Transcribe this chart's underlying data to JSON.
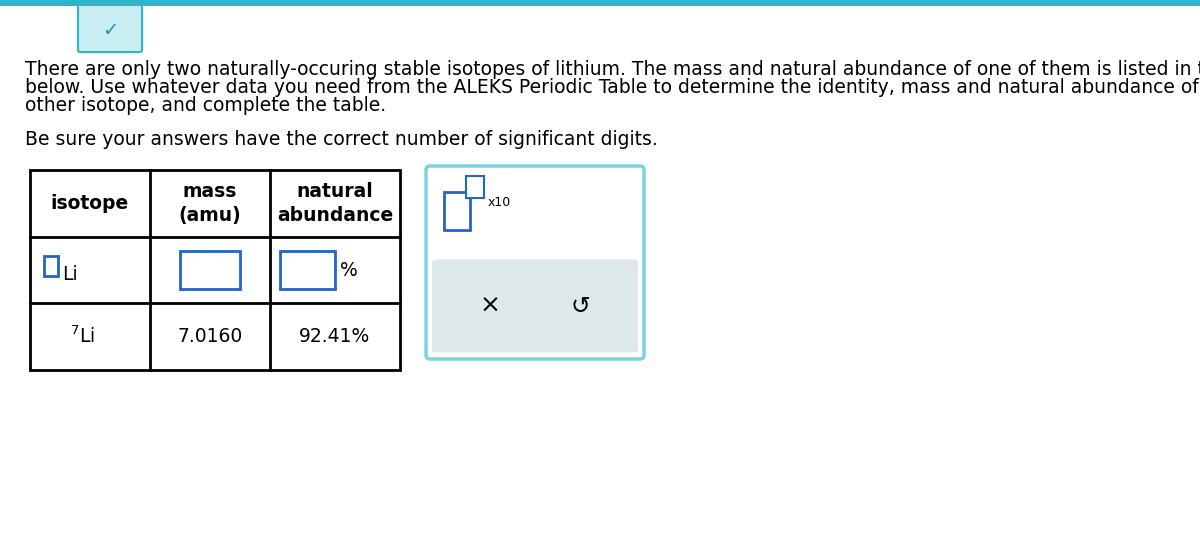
{
  "bg_color": "#ffffff",
  "top_bar_color": "#29b8c8",
  "chevron_box_color": "#c8eef2",
  "chevron_color": "#2199a8",
  "paragraph1_line1": "There are only two naturally-occuring stable isotopes of lithium. The mass and natural abundance of one of them is listed in the table",
  "paragraph1_line2": "below. Use whatever data you need from the ALEKS Periodic Table to determine the identity, mass and natural abundance of the",
  "paragraph1_line3": "other isotope, and complete the table.",
  "paragraph2": "Be sure your answers have the correct number of significant digits.",
  "col_headers": [
    "isotope",
    "mass\n(amu)",
    "natural\nabundance"
  ],
  "row2_mass": "7.0160",
  "row2_abundance": "92.41%",
  "input_box_color": "#2563c7",
  "side_box_border_color": "#7ad4e0",
  "side_box_gray": "#dde8ea",
  "x10_label": "x10",
  "text_color": "#000000",
  "font_size_para": 13.5,
  "font_size_table": 13.5,
  "font_size_small": 9
}
